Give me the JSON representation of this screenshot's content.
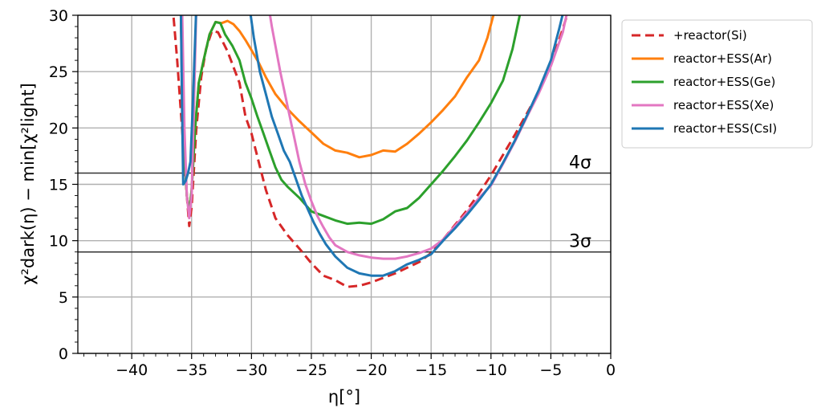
{
  "chart_data": {
    "type": "line",
    "xlabel": "η[°]",
    "ylabel": "χ²dark(η) − min[χ²light]",
    "xlim": [
      -44.5,
      0
    ],
    "ylim": [
      0,
      30
    ],
    "x_ticks": [
      -40,
      -35,
      -30,
      -25,
      -20,
      -15,
      -10,
      -5,
      0
    ],
    "x_tick_labels": [
      "−40",
      "−35",
      "−30",
      "−25",
      "−20",
      "−15",
      "−10",
      "−5",
      "0"
    ],
    "y_ticks": [
      0,
      5,
      10,
      15,
      20,
      25,
      30
    ],
    "y_tick_labels": [
      "0",
      "5",
      "10",
      "15",
      "20",
      "25",
      "30"
    ],
    "grid": true,
    "legend_position": "outside-top-right",
    "hlines": [
      {
        "y": 16,
        "label": "4σ"
      },
      {
        "y": 9,
        "label": "3σ"
      }
    ],
    "series": [
      {
        "name": "+reactor(Si)",
        "color": "#d62728",
        "dashed": true,
        "points": [
          [
            -36.6,
            31
          ],
          [
            -36.2,
            26
          ],
          [
            -35.8,
            20
          ],
          [
            -35.4,
            14
          ],
          [
            -35.2,
            11.3
          ],
          [
            -35,
            13
          ],
          [
            -34.6,
            20
          ],
          [
            -34.2,
            24.5
          ],
          [
            -33.8,
            27
          ],
          [
            -33.3,
            28.6
          ],
          [
            -32.8,
            28.5
          ],
          [
            -32,
            26.8
          ],
          [
            -31,
            24
          ],
          [
            -30.5,
            21
          ],
          [
            -30,
            19.5
          ],
          [
            -29.4,
            17
          ],
          [
            -28.8,
            14.5
          ],
          [
            -28,
            12
          ],
          [
            -27,
            10.5
          ],
          [
            -26,
            9.3
          ],
          [
            -25,
            8
          ],
          [
            -24,
            6.9
          ],
          [
            -23,
            6.5
          ],
          [
            -22,
            5.9
          ],
          [
            -21,
            6
          ],
          [
            -20,
            6.3
          ],
          [
            -19,
            6.7
          ],
          [
            -18,
            7.1
          ],
          [
            -17,
            7.6
          ],
          [
            -16,
            8.1
          ],
          [
            -15,
            8.9
          ],
          [
            -14,
            10.1
          ],
          [
            -13,
            11.4
          ],
          [
            -12,
            12.7
          ],
          [
            -11,
            14.2
          ],
          [
            -10,
            15.8
          ],
          [
            -9,
            17.6
          ],
          [
            -8,
            19.4
          ],
          [
            -7,
            21.3
          ],
          [
            -6,
            23.2
          ],
          [
            -5,
            25.6
          ],
          [
            -4,
            28.8
          ],
          [
            -3.5,
            30.5
          ]
        ]
      },
      {
        "name": "reactor+ESS(Ar)",
        "color": "#ff7f0e",
        "dashed": false,
        "points": [
          [
            -35.9,
            31
          ],
          [
            -35.8,
            24
          ],
          [
            -35.6,
            18
          ],
          [
            -35.4,
            14
          ],
          [
            -35.2,
            12.5
          ],
          [
            -35,
            14.5
          ],
          [
            -34.7,
            20
          ],
          [
            -34.4,
            24
          ],
          [
            -34,
            26
          ],
          [
            -33.5,
            28.3
          ],
          [
            -33,
            29.4
          ],
          [
            -32.5,
            29.3
          ],
          [
            -32,
            29.5
          ],
          [
            -31.5,
            29.2
          ],
          [
            -31,
            28.6
          ],
          [
            -30.5,
            27.8
          ],
          [
            -30,
            26.9
          ],
          [
            -29.4,
            25.8
          ],
          [
            -28.8,
            24.5
          ],
          [
            -28,
            23
          ],
          [
            -27,
            21.7
          ],
          [
            -26,
            20.6
          ],
          [
            -25,
            19.6
          ],
          [
            -24,
            18.6
          ],
          [
            -23,
            18
          ],
          [
            -22,
            17.8
          ],
          [
            -21,
            17.4
          ],
          [
            -20,
            17.6
          ],
          [
            -19,
            18
          ],
          [
            -18,
            17.9
          ],
          [
            -17,
            18.6
          ],
          [
            -16,
            19.5
          ],
          [
            -15,
            20.5
          ],
          [
            -14,
            21.6
          ],
          [
            -13,
            22.8
          ],
          [
            -12,
            24.5
          ],
          [
            -11,
            26
          ],
          [
            -10.3,
            28
          ],
          [
            -9.8,
            30
          ],
          [
            -9.5,
            31
          ]
        ]
      },
      {
        "name": "reactor+ESS(Ge)",
        "color": "#2ca02c",
        "dashed": false,
        "points": [
          [
            -35.9,
            31
          ],
          [
            -35.8,
            24
          ],
          [
            -35.6,
            18
          ],
          [
            -35.4,
            14
          ],
          [
            -35.2,
            12.5
          ],
          [
            -35,
            14.5
          ],
          [
            -34.7,
            20
          ],
          [
            -34.4,
            24
          ],
          [
            -34,
            26
          ],
          [
            -33.5,
            28.3
          ],
          [
            -33,
            29.4
          ],
          [
            -32.6,
            29.3
          ],
          [
            -32.2,
            28.3
          ],
          [
            -31.6,
            27.3
          ],
          [
            -31,
            26
          ],
          [
            -30.5,
            24
          ],
          [
            -30,
            22.6
          ],
          [
            -29.5,
            21
          ],
          [
            -29,
            19.5
          ],
          [
            -28.5,
            18
          ],
          [
            -28,
            16.5
          ],
          [
            -27.5,
            15.4
          ],
          [
            -27,
            14.8
          ],
          [
            -26,
            13.8
          ],
          [
            -25,
            12.6
          ],
          [
            -24,
            12.2
          ],
          [
            -23,
            11.8
          ],
          [
            -22,
            11.5
          ],
          [
            -21,
            11.6
          ],
          [
            -20,
            11.5
          ],
          [
            -19,
            11.9
          ],
          [
            -18,
            12.6
          ],
          [
            -17,
            12.9
          ],
          [
            -16,
            13.8
          ],
          [
            -15,
            15
          ],
          [
            -14,
            16.2
          ],
          [
            -13,
            17.5
          ],
          [
            -12,
            18.9
          ],
          [
            -11,
            20.5
          ],
          [
            -10,
            22.2
          ],
          [
            -9,
            24.2
          ],
          [
            -8.2,
            27
          ],
          [
            -7.6,
            30
          ],
          [
            -7.3,
            31
          ]
        ]
      },
      {
        "name": "reactor+ESS(Xe)",
        "color": "#e377c2",
        "dashed": false,
        "points": [
          [
            -35.8,
            31
          ],
          [
            -35.6,
            20
          ],
          [
            -35.4,
            14
          ],
          [
            -35.2,
            12
          ],
          [
            -35,
            14
          ],
          [
            -34.8,
            22
          ],
          [
            -34.6,
            31
          ],
          [
            -28.6,
            31
          ],
          [
            -28.3,
            29
          ],
          [
            -27.6,
            25
          ],
          [
            -27,
            22
          ],
          [
            -26.4,
            19
          ],
          [
            -26,
            17
          ],
          [
            -25.5,
            15
          ],
          [
            -25,
            13.5
          ],
          [
            -24.5,
            12.2
          ],
          [
            -24,
            11.2
          ],
          [
            -23.5,
            10.3
          ],
          [
            -23,
            9.6
          ],
          [
            -22,
            9
          ],
          [
            -21,
            8.7
          ],
          [
            -20,
            8.5
          ],
          [
            -19,
            8.4
          ],
          [
            -18,
            8.4
          ],
          [
            -17,
            8.6
          ],
          [
            -16,
            8.9
          ],
          [
            -15,
            9.3
          ],
          [
            -14,
            10.1
          ],
          [
            -13,
            11.3
          ],
          [
            -12,
            12.5
          ],
          [
            -11,
            13.8
          ],
          [
            -10,
            14.9
          ],
          [
            -9,
            16.8
          ],
          [
            -8,
            18.8
          ],
          [
            -7,
            21
          ],
          [
            -6,
            23.1
          ],
          [
            -5,
            25.5
          ],
          [
            -4,
            28.5
          ],
          [
            -3.5,
            31
          ]
        ]
      },
      {
        "name": "reactor+ESS(CsI)",
        "color": "#1f77b4",
        "dashed": false,
        "points": [
          [
            -35.9,
            31
          ],
          [
            -35.8,
            22
          ],
          [
            -35.7,
            15
          ],
          [
            -35.5,
            15.3
          ],
          [
            -35.3,
            16
          ],
          [
            -35.1,
            17
          ],
          [
            -34.9,
            22
          ],
          [
            -34.7,
            28
          ],
          [
            -34.6,
            31
          ],
          [
            -30.2,
            31
          ],
          [
            -29.8,
            28
          ],
          [
            -29.3,
            25
          ],
          [
            -28.8,
            23
          ],
          [
            -28.3,
            21
          ],
          [
            -27.8,
            19.5
          ],
          [
            -27.3,
            18
          ],
          [
            -26.8,
            17
          ],
          [
            -26.3,
            15.5
          ],
          [
            -25.8,
            14
          ],
          [
            -25.3,
            12.8
          ],
          [
            -24.8,
            11.6
          ],
          [
            -24.3,
            10.6
          ],
          [
            -23.8,
            9.7
          ],
          [
            -23,
            8.6
          ],
          [
            -22,
            7.6
          ],
          [
            -21,
            7.1
          ],
          [
            -20,
            6.9
          ],
          [
            -19,
            6.9
          ],
          [
            -18,
            7.3
          ],
          [
            -17,
            7.9
          ],
          [
            -16,
            8.3
          ],
          [
            -15,
            8.8
          ],
          [
            -14,
            10
          ],
          [
            -13,
            11.1
          ],
          [
            -12,
            12.3
          ],
          [
            -11,
            13.6
          ],
          [
            -10,
            15
          ],
          [
            -9,
            16.9
          ],
          [
            -8,
            18.9
          ],
          [
            -7,
            21.1
          ],
          [
            -6,
            23.4
          ],
          [
            -5,
            26
          ],
          [
            -4.3,
            28.8
          ],
          [
            -3.8,
            31
          ]
        ]
      }
    ]
  }
}
